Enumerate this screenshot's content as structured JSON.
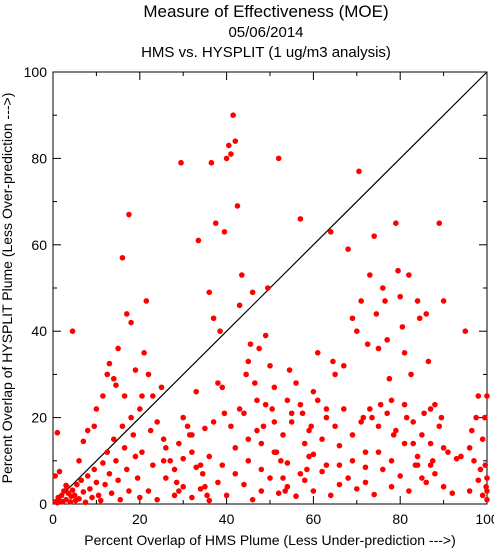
{
  "chart_data": {
    "type": "scatter",
    "title": "Measure of Effectiveness (MOE)",
    "subtitle_date": "05/06/2014",
    "subtitle_analysis": "HMS vs. HYSPLIT  (1 ug/m3 analysis)",
    "xlabel": "Percent Overlap of HMS Plume (Less Under-prediction --->)",
    "ylabel": "Percent Overlap of HYSPLIT Plume (Less Over-prediction --->)",
    "xlim": [
      0,
      100
    ],
    "ylim": [
      0,
      100
    ],
    "xticks": [
      0,
      20,
      40,
      60,
      80,
      100
    ],
    "yticks": [
      0,
      20,
      40,
      60,
      80,
      100
    ],
    "reference_line": "diagonal y = x",
    "grid": false,
    "marker_color": "#ff0000",
    "points": [
      [
        0.5,
        0.5
      ],
      [
        1,
        0.3
      ],
      [
        1.2,
        1.5
      ],
      [
        1.5,
        0.8
      ],
      [
        2,
        2
      ],
      [
        2.2,
        0.5
      ],
      [
        2.5,
        3
      ],
      [
        3,
        1
      ],
      [
        3.2,
        4
      ],
      [
        3.5,
        2.5
      ],
      [
        4,
        0.5
      ],
      [
        4.2,
        1.8
      ],
      [
        4.5,
        3.2
      ],
      [
        5,
        2
      ],
      [
        5.2,
        0.8
      ],
      [
        5.5,
        4.5
      ],
      [
        6,
        1.2
      ],
      [
        6.5,
        5.5
      ],
      [
        7,
        2.8
      ],
      [
        7.5,
        0.4
      ],
      [
        8,
        6.5
      ],
      [
        8.5,
        3.5
      ],
      [
        9,
        1.5
      ],
      [
        9.5,
        8
      ],
      [
        10,
        5
      ],
      [
        10.5,
        2
      ],
      [
        11,
        0.8
      ],
      [
        11.5,
        9.5
      ],
      [
        12,
        4.5
      ],
      [
        12.5,
        12
      ],
      [
        13,
        7
      ],
      [
        13.5,
        2.5
      ],
      [
        14,
        15
      ],
      [
        14.5,
        10
      ],
      [
        15,
        5.5
      ],
      [
        15.5,
        1
      ],
      [
        16,
        18
      ],
      [
        16.5,
        13
      ],
      [
        17,
        8
      ],
      [
        17.5,
        3
      ],
      [
        18,
        20
      ],
      [
        18.5,
        16
      ],
      [
        19,
        11
      ],
      [
        19.5,
        6
      ],
      [
        20,
        1.5
      ],
      [
        0.5,
        6.5
      ],
      [
        1,
        16.5
      ],
      [
        1.5,
        7.5
      ],
      [
        3,
        4.3
      ],
      [
        4.5,
        40
      ],
      [
        6,
        10
      ],
      [
        7,
        14.5
      ],
      [
        8,
        17
      ],
      [
        9.5,
        18
      ],
      [
        10,
        22
      ],
      [
        11.5,
        25
      ],
      [
        12.5,
        30
      ],
      [
        13,
        32.5
      ],
      [
        14,
        29
      ],
      [
        14.5,
        27.5
      ],
      [
        15,
        36
      ],
      [
        16,
        57
      ],
      [
        16.5,
        25
      ],
      [
        17,
        44
      ],
      [
        17.5,
        67
      ],
      [
        18,
        42
      ],
      [
        19,
        31
      ],
      [
        20,
        22
      ],
      [
        20.5,
        25
      ],
      [
        21,
        35
      ],
      [
        21.5,
        47
      ],
      [
        22,
        30
      ],
      [
        22.5,
        17
      ],
      [
        23,
        25
      ],
      [
        24,
        19
      ],
      [
        25,
        27
      ],
      [
        25.5,
        15
      ],
      [
        26,
        13
      ],
      [
        27,
        10
      ],
      [
        28,
        8
      ],
      [
        28.5,
        5
      ],
      [
        29,
        3
      ],
      [
        29.5,
        79
      ],
      [
        30,
        20
      ],
      [
        31,
        18
      ],
      [
        31.5,
        16
      ],
      [
        32,
        12
      ],
      [
        33,
        26
      ],
      [
        33.5,
        61
      ],
      [
        34,
        9
      ],
      [
        34.5,
        7
      ],
      [
        35,
        4
      ],
      [
        35.5,
        2
      ],
      [
        36,
        49
      ],
      [
        36.5,
        79
      ],
      [
        37,
        43
      ],
      [
        37.5,
        65
      ],
      [
        38,
        28
      ],
      [
        38.5,
        40
      ],
      [
        39,
        27
      ],
      [
        39.5,
        63
      ],
      [
        40,
        80
      ],
      [
        40.5,
        83
      ],
      [
        41,
        81
      ],
      [
        41.5,
        90
      ],
      [
        42,
        84
      ],
      [
        42.5,
        69
      ],
      [
        43,
        46
      ],
      [
        43.5,
        53
      ],
      [
        44,
        21
      ],
      [
        44.5,
        30
      ],
      [
        45,
        33
      ],
      [
        45.5,
        37
      ],
      [
        46,
        49
      ],
      [
        46.5,
        28
      ],
      [
        47,
        24
      ],
      [
        47.5,
        36
      ],
      [
        48,
        14
      ],
      [
        48.5,
        18
      ],
      [
        49,
        39
      ],
      [
        49.5,
        50
      ],
      [
        50,
        32
      ],
      [
        50.5,
        22
      ],
      [
        51,
        27
      ],
      [
        51.5,
        12
      ],
      [
        52,
        80
      ],
      [
        52.5,
        10
      ],
      [
        53,
        6
      ],
      [
        53.5,
        3
      ],
      [
        54,
        24
      ],
      [
        54.5,
        31
      ],
      [
        55,
        19
      ],
      [
        56,
        28
      ],
      [
        57,
        66
      ],
      [
        57.5,
        21
      ],
      [
        58,
        14
      ],
      [
        58.5,
        8
      ],
      [
        59,
        11
      ],
      [
        59.5,
        18
      ],
      [
        60,
        26
      ],
      [
        61,
        35
      ],
      [
        62,
        15
      ],
      [
        63,
        22
      ],
      [
        64,
        63
      ],
      [
        64.5,
        33
      ],
      [
        65,
        30
      ],
      [
        66,
        9
      ],
      [
        67,
        32
      ],
      [
        68,
        59
      ],
      [
        69,
        43
      ],
      [
        70,
        40
      ],
      [
        70.5,
        77
      ],
      [
        71,
        47
      ],
      [
        71.5,
        20
      ],
      [
        72,
        12
      ],
      [
        72.5,
        37
      ],
      [
        73,
        53
      ],
      [
        73.5,
        20
      ],
      [
        74,
        62
      ],
      [
        74.5,
        44
      ],
      [
        75,
        36
      ],
      [
        75.5,
        23
      ],
      [
        76,
        50
      ],
      [
        76.5,
        47
      ],
      [
        77,
        38
      ],
      [
        77.5,
        29
      ],
      [
        78,
        24
      ],
      [
        78.5,
        16
      ],
      [
        79,
        65
      ],
      [
        79.5,
        54
      ],
      [
        80,
        48
      ],
      [
        80.5,
        41
      ],
      [
        81,
        35
      ],
      [
        81.5,
        20
      ],
      [
        82,
        53
      ],
      [
        82.5,
        30
      ],
      [
        83,
        14
      ],
      [
        83.5,
        9
      ],
      [
        84,
        47
      ],
      [
        84.5,
        43
      ],
      [
        85,
        6
      ],
      [
        85.5,
        21
      ],
      [
        86,
        44
      ],
      [
        86.5,
        33
      ],
      [
        87,
        14
      ],
      [
        87.5,
        10
      ],
      [
        88,
        23
      ],
      [
        89,
        65
      ],
      [
        89.5,
        20
      ],
      [
        90,
        47
      ],
      [
        91,
        12
      ],
      [
        95,
        40
      ],
      [
        96,
        13
      ],
      [
        96.5,
        17
      ],
      [
        97,
        10
      ],
      [
        97.5,
        20
      ],
      [
        98,
        25
      ],
      [
        98.5,
        8
      ],
      [
        99,
        15
      ],
      [
        99.5,
        20
      ],
      [
        100,
        25
      ],
      [
        100,
        3
      ],
      [
        100,
        6
      ],
      [
        100,
        1
      ],
      [
        99.8,
        4
      ],
      [
        99.6,
        9
      ],
      [
        22,
        3
      ],
      [
        24,
        1
      ],
      [
        26,
        6
      ],
      [
        28,
        2
      ],
      [
        30,
        4
      ],
      [
        32,
        1.5
      ],
      [
        34,
        3.5
      ],
      [
        36,
        0.8
      ],
      [
        38,
        5
      ],
      [
        40,
        2
      ],
      [
        42,
        7
      ],
      [
        44,
        4.5
      ],
      [
        46,
        1
      ],
      [
        48,
        3
      ],
      [
        50,
        6
      ],
      [
        52,
        2.5
      ],
      [
        54,
        4
      ],
      [
        56,
        1.8
      ],
      [
        58,
        5.5
      ],
      [
        60,
        3
      ],
      [
        62,
        7.5
      ],
      [
        64,
        2
      ],
      [
        66,
        4.5
      ],
      [
        68,
        6
      ],
      [
        70,
        3.5
      ],
      [
        72,
        5
      ],
      [
        74,
        2.2
      ],
      [
        76,
        8
      ],
      [
        78,
        4
      ],
      [
        80,
        6.5
      ],
      [
        82,
        3
      ],
      [
        84,
        9
      ],
      [
        86,
        5
      ],
      [
        88,
        7
      ],
      [
        90,
        4
      ],
      [
        92,
        2.5
      ],
      [
        94,
        11
      ],
      [
        96,
        3
      ],
      [
        98,
        5.5
      ],
      [
        99,
        2
      ],
      [
        30,
        10.5
      ],
      [
        33,
        8.5
      ],
      [
        36,
        11
      ],
      [
        39,
        9
      ],
      [
        42,
        13
      ],
      [
        45,
        10
      ],
      [
        48,
        8
      ],
      [
        51,
        12
      ],
      [
        54,
        9.5
      ],
      [
        57,
        7
      ],
      [
        60,
        11.5
      ],
      [
        63,
        9
      ],
      [
        66,
        13.5
      ],
      [
        69,
        10
      ],
      [
        72,
        8.5
      ],
      [
        75,
        12
      ],
      [
        78,
        10
      ],
      [
        81,
        14
      ],
      [
        84,
        11
      ],
      [
        87,
        9
      ],
      [
        90,
        13
      ],
      [
        93,
        10.5
      ],
      [
        20.5,
        12
      ],
      [
        23,
        9
      ],
      [
        25.5,
        10
      ],
      [
        29,
        14
      ],
      [
        32,
        16
      ],
      [
        35,
        17.5
      ],
      [
        37,
        19
      ],
      [
        39.5,
        21
      ],
      [
        41,
        18
      ],
      [
        43,
        22
      ],
      [
        45,
        15
      ],
      [
        47,
        17
      ],
      [
        49,
        23
      ],
      [
        51,
        19
      ],
      [
        53,
        16
      ],
      [
        55,
        21
      ],
      [
        57,
        23
      ],
      [
        59,
        17
      ],
      [
        61,
        24
      ],
      [
        63,
        20
      ],
      [
        65,
        18
      ],
      [
        67,
        22
      ],
      [
        69,
        16
      ],
      [
        71,
        19
      ],
      [
        73,
        22
      ],
      [
        75,
        18
      ],
      [
        77,
        21
      ],
      [
        79,
        17
      ],
      [
        81,
        23
      ],
      [
        83,
        19
      ],
      [
        85,
        16
      ],
      [
        87,
        22
      ],
      [
        89,
        18
      ]
    ]
  }
}
